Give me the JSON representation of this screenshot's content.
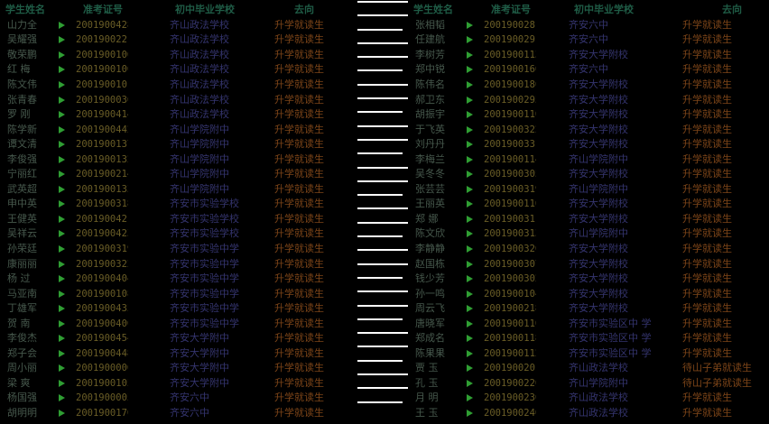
{
  "colors": {
    "bg": "#000000",
    "header_color": "#1f5c46",
    "name_color": "#46584c",
    "id_color": "#6a5d26",
    "school_color": "#34346e",
    "dest_color": "#7c4418",
    "marker_color": "#2f9e33",
    "dash_color": "#ffffff"
  },
  "table": {
    "headers": [
      "学生姓名",
      "准考证号",
      "初中毕业学校",
      "去向"
    ],
    "left_rows": [
      {
        "name": "山力全",
        "exam_no": "2001900428",
        "school": "齐山政法学校",
        "dest": "升学就读生"
      },
      {
        "name": "吴耀强",
        "exam_no": "2001900221",
        "school": "齐山政法学校",
        "dest": "升学就读生"
      },
      {
        "name": "敬荣鹏",
        "exam_no": "2001900106",
        "school": "齐山政法学校",
        "dest": "升学就读生"
      },
      {
        "name": "红  梅",
        "exam_no": "2001900100",
        "school": "齐山政法学校",
        "dest": "升学就读生"
      },
      {
        "name": "陈文伟",
        "exam_no": "2001900101",
        "school": "齐山政法学校",
        "dest": "升学就读生"
      },
      {
        "name": "张青春",
        "exam_no": "2001900036",
        "school": "齐山政法学校",
        "dest": "升学就读生"
      },
      {
        "name": "罗  刚",
        "exam_no": "2001900414",
        "school": "齐山政法学校",
        "dest": "升学就读生"
      },
      {
        "name": "陈学新",
        "exam_no": "2001900442",
        "school": "齐山学院附中",
        "dest": "升学就读生"
      },
      {
        "name": "谭文清",
        "exam_no": "2001900137",
        "school": "齐山学院附中",
        "dest": "升学就读生"
      },
      {
        "name": "李俊强",
        "exam_no": "2001900132",
        "school": "齐山学院附中",
        "dest": "升学就读生"
      },
      {
        "name": "宁丽红",
        "exam_no": "2001900214",
        "school": "齐山学院附中",
        "dest": "升学就读生"
      },
      {
        "name": "武英超",
        "exam_no": "2001900133",
        "school": "齐山学院附中",
        "dest": "升学就读生"
      },
      {
        "name": "申中英",
        "exam_no": "2001900318",
        "school": "齐安市实验学校",
        "dest": "升学就读生"
      },
      {
        "name": "王健英",
        "exam_no": "2001900421",
        "school": "齐安市实验学校",
        "dest": "升学就读生"
      },
      {
        "name": "吴祥云",
        "exam_no": "2001900423",
        "school": "齐安市实验学校",
        "dest": "升学就读生"
      },
      {
        "name": "孙荣廷",
        "exam_no": "2001900319",
        "school": "齐安市实验中学",
        "dest": "升学就读生"
      },
      {
        "name": "康丽丽",
        "exam_no": "2001900322",
        "school": "齐安市实验中学",
        "dest": "升学就读生"
      },
      {
        "name": "杨  过",
        "exam_no": "2001900404",
        "school": "齐安市实验中学",
        "dest": "升学就读生"
      },
      {
        "name": "马亚南",
        "exam_no": "2001900108",
        "school": "齐安市实验中学",
        "dest": "升学就读生"
      },
      {
        "name": "丁雄军",
        "exam_no": "2001900435",
        "school": "齐安市实验中学",
        "dest": "升学就读生"
      },
      {
        "name": "贺  南",
        "exam_no": "2001900400",
        "school": "齐安市实验中学",
        "dest": "升学就读生"
      },
      {
        "name": "李俊杰",
        "exam_no": "2001900454",
        "school": "齐安大学附中",
        "dest": "升学就读生"
      },
      {
        "name": "郑子会",
        "exam_no": "2001900448",
        "school": "齐安大学附中",
        "dest": "升学就读生"
      },
      {
        "name": "周小丽",
        "exam_no": "2001900006",
        "school": "齐安大学附中",
        "dest": "升学就读生"
      },
      {
        "name": "梁  爽",
        "exam_no": "2001900105",
        "school": "齐安大学附中",
        "dest": "升学就读生"
      },
      {
        "name": "杨国强",
        "exam_no": "2001900005",
        "school": "齐安六中",
        "dest": "升学就读生"
      },
      {
        "name": "胡明明",
        "exam_no": "2001900170",
        "school": "齐安六中",
        "dest": "升学就读生"
      }
    ],
    "right_rows": [
      {
        "name": "张相韬",
        "exam_no": "2001900281",
        "school": "齐安六中",
        "dest": "升学就读生"
      },
      {
        "name": "任建航",
        "exam_no": "2001900291",
        "school": "齐安六中",
        "dest": "升学就读生"
      },
      {
        "name": "李树芳",
        "exam_no": "2001900113",
        "school": "齐安大学附校",
        "dest": "升学就读生"
      },
      {
        "name": "郑中锐",
        "exam_no": "2001900160",
        "school": "齐安六中",
        "dest": "升学就读生"
      },
      {
        "name": "陈伟名",
        "exam_no": "2001900180",
        "school": "齐安大学附校",
        "dest": "升学就读生"
      },
      {
        "name": "郝卫东",
        "exam_no": "2001900295",
        "school": "齐安大学附校",
        "dest": "升学就读生"
      },
      {
        "name": "胡振宇",
        "exam_no": "2001900110",
        "school": "齐安大学附校",
        "dest": "升学就读生"
      },
      {
        "name": "于飞英",
        "exam_no": "2001900322",
        "school": "齐安大学附校",
        "dest": "升学就读生"
      },
      {
        "name": "刘丹丹",
        "exam_no": "2001900331",
        "school": "齐安大学附校",
        "dest": "升学就读生"
      },
      {
        "name": "李梅兰",
        "exam_no": "2001900114",
        "school": "齐山学院附中",
        "dest": "升学就读生"
      },
      {
        "name": "吴冬冬",
        "exam_no": "2001900305",
        "school": "齐安大学附校",
        "dest": "升学就读生"
      },
      {
        "name": "张芸芸",
        "exam_no": "2001900319",
        "school": "齐山学院附中",
        "dest": "升学就读生"
      },
      {
        "name": "王丽英",
        "exam_no": "2001900116",
        "school": "齐安大学附校",
        "dest": "升学就读生"
      },
      {
        "name": "郑  娜",
        "exam_no": "2001900311",
        "school": "齐安大学附校",
        "dest": "升学就读生"
      },
      {
        "name": "陈文欣",
        "exam_no": "2001900313",
        "school": "齐山学院附中",
        "dest": "升学就读生"
      },
      {
        "name": "李静静",
        "exam_no": "2001900320",
        "school": "齐安大学附校",
        "dest": "升学就读生"
      },
      {
        "name": "赵国栋",
        "exam_no": "2001900307",
        "school": "齐安大学附校",
        "dest": "升学就读生"
      },
      {
        "name": "钱少芳",
        "exam_no": "2001900302",
        "school": "齐安大学附校",
        "dest": "升学就读生"
      },
      {
        "name": "孙一鸣",
        "exam_no": "2001900104",
        "school": "齐安大学附校",
        "dest": "升学就读生"
      },
      {
        "name": "周云飞",
        "exam_no": "2001900218",
        "school": "齐安大学附校",
        "dest": "升学就读生"
      },
      {
        "name": "唐晓军",
        "exam_no": "2001900110",
        "school": "齐安市实验区中 学",
        "dest": "升学就读生"
      },
      {
        "name": "郑成名",
        "exam_no": "2001900118",
        "school": "齐安市实验区中 学",
        "dest": "升学就读生"
      },
      {
        "name": "陈果果",
        "exam_no": "2001900112",
        "school": "齐安市实验区中 学",
        "dest": "升学就读生"
      },
      {
        "name": "贾  玉",
        "exam_no": "2001900201",
        "school": "齐山政法学校",
        "dest": "待山子弟就读生"
      },
      {
        "name": "孔  玉",
        "exam_no": "2001900220",
        "school": "齐山学院附中",
        "dest": "待山子弟就读生"
      },
      {
        "name": "月  明",
        "exam_no": "2001900230",
        "school": "齐山政法学校",
        "dest": "升学就读生"
      },
      {
        "name": "王  玉",
        "exam_no": "2001900240",
        "school": "齐山政法学校",
        "dest": "升学就读生"
      }
    ]
  },
  "divider": {
    "dash_count": 30
  }
}
